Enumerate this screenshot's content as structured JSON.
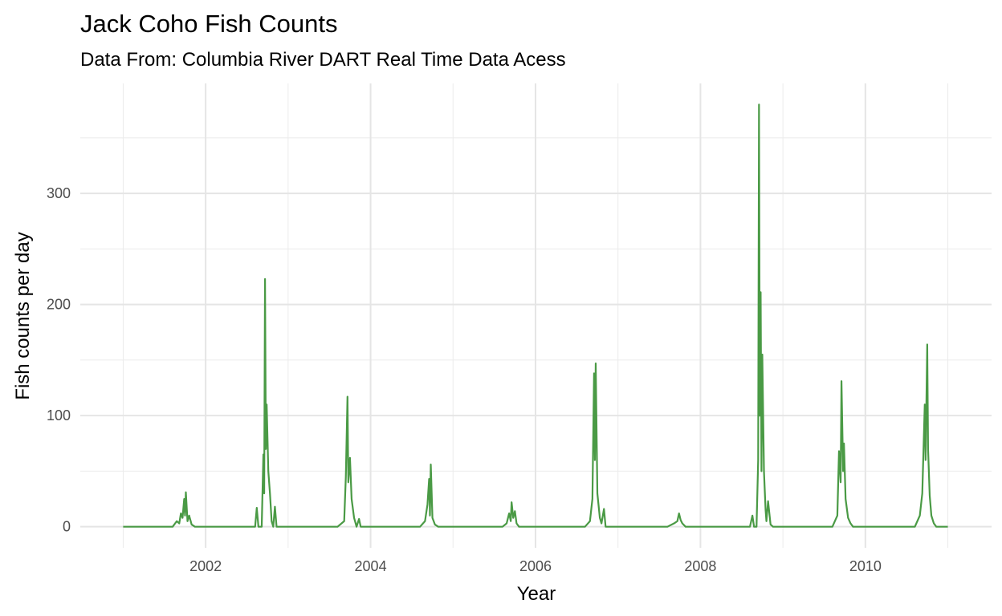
{
  "chart_data": {
    "type": "line",
    "title": "Jack Coho Fish Counts",
    "subtitle": "Data From: Columbia River DART Real Time Data Acess",
    "x_label": "Year",
    "y_label": "Fish counts per day",
    "color": "#4a9a45",
    "grid": true,
    "xlim": [
      2000.48,
      2011.53
    ],
    "ylim": [
      -19,
      399
    ],
    "xticks": [
      2002,
      2004,
      2006,
      2008,
      2010
    ],
    "yticks": [
      0,
      100,
      200,
      300
    ],
    "x_minor_ticks": [
      2001,
      2003,
      2005,
      2007,
      2009,
      2011
    ],
    "y_minor_ticks": [
      50,
      150,
      250,
      350
    ],
    "x": [
      2001.0,
      2001.6,
      2001.65,
      2001.68,
      2001.7,
      2001.72,
      2001.74,
      2001.75,
      2001.76,
      2001.78,
      2001.8,
      2001.83,
      2001.87,
      2002.6,
      2002.62,
      2002.64,
      2002.68,
      2002.7,
      2002.71,
      2002.72,
      2002.73,
      2002.74,
      2002.76,
      2002.78,
      2002.8,
      2002.82,
      2002.84,
      2002.86,
      2003.6,
      2003.68,
      2003.7,
      2003.72,
      2003.73,
      2003.75,
      2003.77,
      2003.8,
      2003.83,
      2003.86,
      2003.88,
      2004.6,
      2004.66,
      2004.69,
      2004.71,
      2004.72,
      2004.73,
      2004.75,
      2004.78,
      2004.82,
      2005.6,
      2005.65,
      2005.68,
      2005.7,
      2005.71,
      2005.73,
      2005.75,
      2005.77,
      2005.8,
      2006.6,
      2006.66,
      2006.69,
      2006.71,
      2006.72,
      2006.73,
      2006.75,
      2006.78,
      2006.8,
      2006.83,
      2006.85,
      2007.6,
      2007.68,
      2007.72,
      2007.74,
      2007.76,
      2007.78,
      2007.82,
      2008.6,
      2008.63,
      2008.65,
      2008.68,
      2008.7,
      2008.71,
      2008.72,
      2008.73,
      2008.74,
      2008.75,
      2008.77,
      2008.79,
      2008.8,
      2008.82,
      2008.85,
      2008.88,
      2009.6,
      2009.66,
      2009.68,
      2009.7,
      2009.71,
      2009.73,
      2009.74,
      2009.76,
      2009.79,
      2009.82,
      2009.85,
      2010.6,
      2010.66,
      2010.69,
      2010.72,
      2010.73,
      2010.75,
      2010.76,
      2010.78,
      2010.8,
      2010.83,
      2010.86,
      2011.0
    ],
    "values": [
      0,
      0,
      5,
      3,
      12,
      8,
      25,
      10,
      31,
      5,
      10,
      2,
      0,
      0,
      17,
      0,
      0,
      65,
      30,
      223,
      70,
      110,
      50,
      30,
      5,
      0,
      18,
      0,
      0,
      5,
      45,
      117,
      40,
      62,
      25,
      8,
      0,
      7,
      0,
      0,
      5,
      20,
      43,
      10,
      56,
      8,
      2,
      0,
      0,
      3,
      12,
      5,
      22,
      8,
      14,
      3,
      0,
      0,
      5,
      25,
      138,
      60,
      147,
      30,
      8,
      3,
      16,
      0,
      0,
      3,
      5,
      12,
      6,
      3,
      0,
      0,
      10,
      0,
      0,
      60,
      380,
      100,
      211,
      50,
      155,
      50,
      15,
      5,
      23,
      2,
      0,
      0,
      10,
      68,
      40,
      131,
      50,
      75,
      25,
      8,
      3,
      0,
      0,
      10,
      30,
      110,
      60,
      164,
      70,
      28,
      10,
      3,
      0,
      0
    ]
  }
}
